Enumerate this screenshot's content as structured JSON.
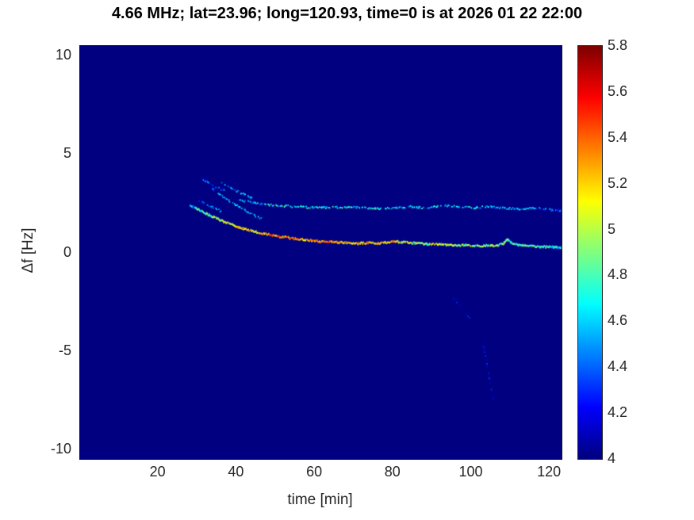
{
  "title": "4.66 MHz;  lat=23.96; long=120.93, time=0 is at 2026 01 22 22:00",
  "chart_data": {
    "type": "heatmap",
    "title": "4.66 MHz;  lat=23.96; long=120.93, time=0 is at 2026 01 22 22:00",
    "xlabel": "time [min]",
    "ylabel": "Δf [Hz]",
    "xlim": [
      0,
      123
    ],
    "ylim": [
      -10.5,
      10.5
    ],
    "x_ticks": [
      20,
      40,
      60,
      80,
      100,
      120
    ],
    "y_ticks": [
      10,
      5,
      0,
      -5,
      -10
    ],
    "grid": false,
    "colorbar": {
      "min": 4,
      "max": 5.8,
      "ticks": [
        4,
        4.2,
        4.4,
        4.6,
        4.8,
        5,
        5.2,
        5.4,
        5.6,
        5.8
      ],
      "colormap": "jet",
      "position": "right"
    },
    "background_value": 4,
    "series": [
      {
        "name": "lower-doppler-trace",
        "x": [
          28,
          30,
          32,
          34,
          36,
          38,
          40,
          42,
          44,
          46,
          48,
          50,
          52,
          54,
          56,
          58,
          60,
          62,
          64,
          66,
          68,
          70,
          72,
          74,
          76,
          78,
          80,
          82,
          84,
          86,
          88,
          90,
          92,
          94,
          96,
          98,
          100,
          102,
          104,
          106,
          108,
          109,
          110,
          112,
          114,
          116,
          118,
          120,
          122,
          123
        ],
        "y": [
          2.45,
          2.22,
          2.02,
          1.84,
          1.65,
          1.5,
          1.35,
          1.22,
          1.12,
          1.03,
          0.95,
          0.88,
          0.82,
          0.76,
          0.71,
          0.67,
          0.63,
          0.6,
          0.58,
          0.55,
          0.53,
          0.5,
          0.51,
          0.53,
          0.5,
          0.55,
          0.6,
          0.57,
          0.53,
          0.5,
          0.47,
          0.45,
          0.45,
          0.43,
          0.4,
          0.42,
          0.4,
          0.38,
          0.4,
          0.38,
          0.5,
          0.72,
          0.52,
          0.42,
          0.38,
          0.35,
          0.33,
          0.32,
          0.3,
          0.3
        ],
        "v": [
          4.55,
          4.7,
          4.8,
          4.9,
          5.0,
          5.0,
          5.1,
          5.15,
          5.2,
          5.25,
          5.3,
          5.35,
          5.3,
          5.35,
          5.3,
          5.25,
          5.3,
          5.35,
          5.3,
          5.2,
          5.15,
          5.2,
          5.25,
          5.2,
          5.15,
          5.2,
          5.25,
          5.1,
          5.0,
          5.0,
          4.95,
          5.0,
          5.05,
          5.0,
          4.95,
          4.9,
          4.9,
          4.85,
          4.9,
          4.85,
          4.9,
          4.85,
          4.8,
          4.85,
          4.8,
          4.8,
          4.75,
          4.7,
          4.65,
          4.6
        ],
        "density": 0.95,
        "weight": 2.2
      },
      {
        "name": "upper-doppler-trace",
        "x": [
          40,
          43,
          46,
          49,
          52,
          55,
          58,
          61,
          64,
          68,
          72,
          76,
          80,
          84,
          88,
          92,
          96,
          100,
          104,
          108,
          112,
          116,
          120,
          123
        ],
        "y": [
          2.72,
          2.6,
          2.5,
          2.44,
          2.4,
          2.36,
          2.33,
          2.3,
          2.32,
          2.35,
          2.3,
          2.27,
          2.3,
          2.36,
          2.3,
          2.42,
          2.36,
          2.3,
          2.36,
          2.3,
          2.24,
          2.3,
          2.2,
          2.15
        ],
        "v": [
          4.45,
          4.5,
          4.55,
          4.6,
          4.65,
          4.6,
          4.65,
          4.6,
          4.65,
          4.7,
          4.6,
          4.6,
          4.65,
          4.6,
          4.6,
          4.65,
          4.6,
          4.6,
          4.55,
          4.5,
          4.55,
          4.5,
          4.45,
          4.4
        ],
        "density": 0.6,
        "weight": 1.8
      },
      {
        "name": "onset-branch-steep-upper",
        "x": [
          31,
          32.5,
          34,
          35.5,
          37
        ],
        "y": [
          3.8,
          3.6,
          3.42,
          3.28,
          3.15
        ],
        "v": [
          4.35,
          4.4,
          4.35,
          4.4,
          4.35
        ],
        "density": 0.5,
        "weight": 1.8
      },
      {
        "name": "onset-branch-joining-upper",
        "x": [
          36,
          38,
          40,
          42,
          44
        ],
        "y": [
          3.62,
          3.38,
          3.15,
          2.95,
          2.78
        ],
        "v": [
          4.4,
          4.45,
          4.5,
          4.45,
          4.5
        ],
        "density": 0.55,
        "weight": 1.8
      },
      {
        "name": "onset-branch-crossing",
        "x": [
          33,
          35,
          37,
          39,
          41,
          43,
          45,
          46.5
        ],
        "y": [
          3.35,
          3.05,
          2.78,
          2.52,
          2.28,
          2.05,
          1.85,
          1.72
        ],
        "v": [
          4.45,
          4.5,
          4.5,
          4.55,
          4.5,
          4.5,
          4.45,
          4.4
        ],
        "density": 0.55,
        "weight": 1.8
      },
      {
        "name": "onset-branch-lower-parallel",
        "x": [
          30,
          32,
          34,
          36
        ],
        "y": [
          2.7,
          2.5,
          2.3,
          2.12
        ],
        "v": [
          4.4,
          4.45,
          4.4,
          4.4
        ],
        "density": 0.5,
        "weight": 1.8
      },
      {
        "name": "faint-noise-specks",
        "x": [
          95,
          100,
          101,
          103,
          106
        ],
        "y": [
          -2.2,
          -3.5,
          -4.3,
          -4.8,
          -8.2
        ],
        "v": [
          4.15,
          4.15,
          4.2,
          4.15,
          4.2
        ],
        "density": 0.3,
        "weight": 1.5
      }
    ]
  },
  "colors": {
    "figure_background": "#ffffff",
    "axes_text": "#262626",
    "title_text": "#000000",
    "heatmap_background": "#000090"
  }
}
